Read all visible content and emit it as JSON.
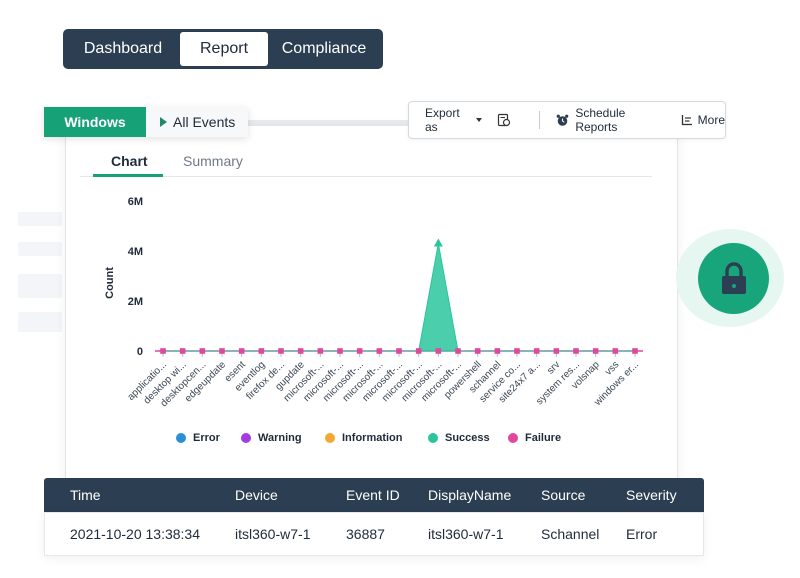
{
  "top_tabs": [
    {
      "label": "Dashboard",
      "active": false
    },
    {
      "label": "Report",
      "active": true
    },
    {
      "label": "Compliance",
      "active": false
    }
  ],
  "filters": {
    "platform": "Windows",
    "events": "All Events"
  },
  "toolbar": {
    "export_label": "Export as",
    "export_icon": "export-pdf-icon",
    "schedule_label": "Schedule Reports",
    "schedule_icon": "alarm-clock-icon",
    "more_label": "More",
    "more_icon": "more-list-icon"
  },
  "subtabs": [
    {
      "label": "Chart",
      "active": true
    },
    {
      "label": "Summary",
      "active": false
    }
  ],
  "chart_data": {
    "type": "area",
    "ylabel": "Count",
    "xlabel": "",
    "ylim": [
      0,
      6000000
    ],
    "y_ticks": [
      "0",
      "2M",
      "4M",
      "6M"
    ],
    "categories": [
      "applicatio...",
      "desktop wi...",
      "desktopcen...",
      "edgeupdate",
      "esent",
      "eventlog",
      "firefox de...",
      "gupdate",
      "microsoft-...",
      "microsoft-...",
      "microsoft-...",
      "microsoft-...",
      "microsoft-...",
      "microsoft-...",
      "microsoft-...",
      "microsoft-...",
      "powershell",
      "schannel",
      "service co...",
      "site24x7 a...",
      "srv",
      "system res...",
      "volsnap",
      "vss",
      "windows er..."
    ],
    "series": [
      {
        "name": "Error",
        "color": "#2a8fd6",
        "values": [
          0,
          0,
          0,
          0,
          0,
          0,
          0,
          0,
          0,
          0,
          0,
          0,
          0,
          0,
          0,
          0,
          0,
          0,
          0,
          0,
          0,
          0,
          0,
          0,
          0
        ]
      },
      {
        "name": "Warning",
        "color": "#a43be0",
        "values": [
          0,
          0,
          0,
          0,
          0,
          0,
          0,
          0,
          0,
          0,
          0,
          0,
          0,
          0,
          0,
          0,
          0,
          0,
          0,
          0,
          0,
          0,
          0,
          0,
          0
        ]
      },
      {
        "name": "Information",
        "color": "#f5a733",
        "values": [
          0,
          0,
          0,
          0,
          0,
          0,
          0,
          0,
          0,
          0,
          0,
          0,
          0,
          0,
          0,
          0,
          0,
          0,
          0,
          0,
          0,
          0,
          0,
          0,
          0
        ]
      },
      {
        "name": "Success",
        "color": "#2ac59c",
        "values": [
          0,
          0,
          0,
          0,
          0,
          0,
          0,
          0,
          0,
          0,
          0,
          0,
          0,
          0,
          4300000,
          0,
          0,
          0,
          0,
          0,
          0,
          0,
          0,
          0,
          0
        ]
      },
      {
        "name": "Failure",
        "color": "#e2479e",
        "values": [
          0,
          0,
          0,
          0,
          0,
          0,
          0,
          0,
          0,
          0,
          0,
          0,
          0,
          0,
          0,
          0,
          0,
          0,
          0,
          0,
          0,
          0,
          0,
          0,
          0
        ]
      }
    ],
    "legend_position": "bottom"
  },
  "lock_icon": "lock-icon",
  "table": {
    "headers": [
      "Time",
      "Device",
      "Event ID",
      "DisplayName",
      "Source",
      "Severity"
    ],
    "rows": [
      [
        "2021-10-20 13:38:34",
        "itsl360-w7-1",
        "36887",
        "itsl360-w7-1",
        "Schannel",
        "Error"
      ]
    ]
  }
}
